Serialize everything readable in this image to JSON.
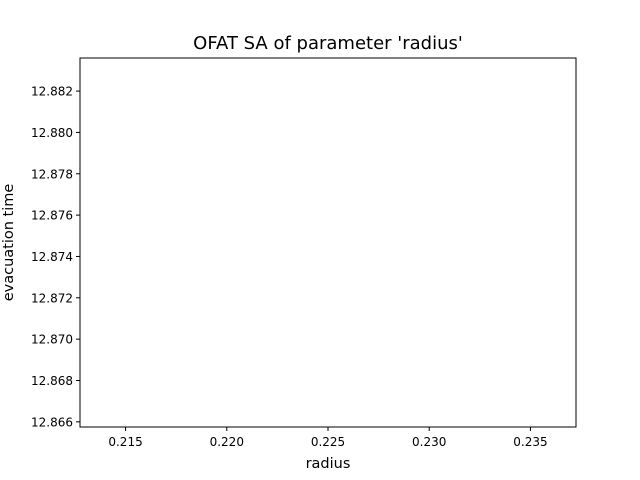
{
  "chart_data": {
    "type": "line",
    "title": "OFAT SA of parameter 'radius'",
    "xlabel": "radius",
    "ylabel": "evacuation time",
    "xlim": [
      0.21275,
      0.23725
    ],
    "ylim": [
      12.86575,
      12.8836
    ],
    "xticks": [
      "0.215",
      "0.220",
      "0.225",
      "0.230",
      "0.235"
    ],
    "yticks": [
      "12.866",
      "12.868",
      "12.870",
      "12.872",
      "12.874",
      "12.876",
      "12.878",
      "12.880",
      "12.882"
    ],
    "grid": false,
    "series": []
  }
}
